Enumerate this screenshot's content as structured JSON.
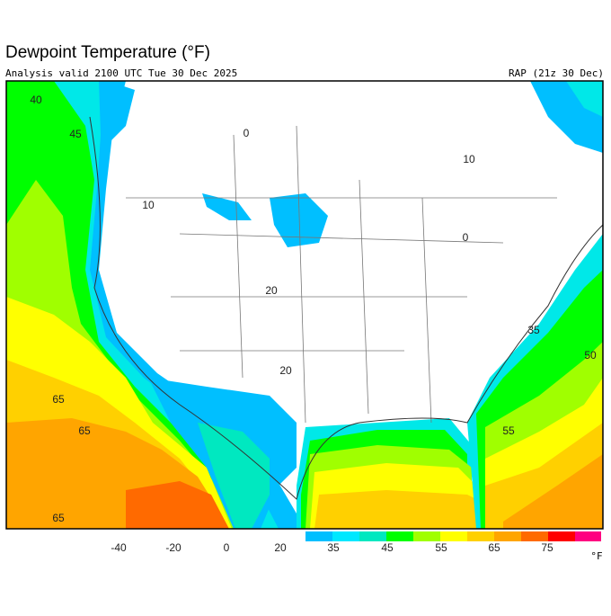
{
  "header": {
    "title": "Dewpoint Temperature (°F)",
    "subtitle": "Analysis valid 2100 UTC Tue 30 Dec 2025",
    "model": "RAP (21z 30 Dec)"
  },
  "map": {
    "labels": [
      "40",
      "45",
      "0",
      "10",
      "0",
      "20",
      "20",
      "35",
      "50",
      "55",
      "65",
      "65",
      "65",
      "10"
    ]
  },
  "colorbar": {
    "labels": [
      "-40",
      "-20",
      "0",
      "20",
      "35",
      "45",
      "55",
      "65",
      "75"
    ],
    "unit": "°F"
  }
}
